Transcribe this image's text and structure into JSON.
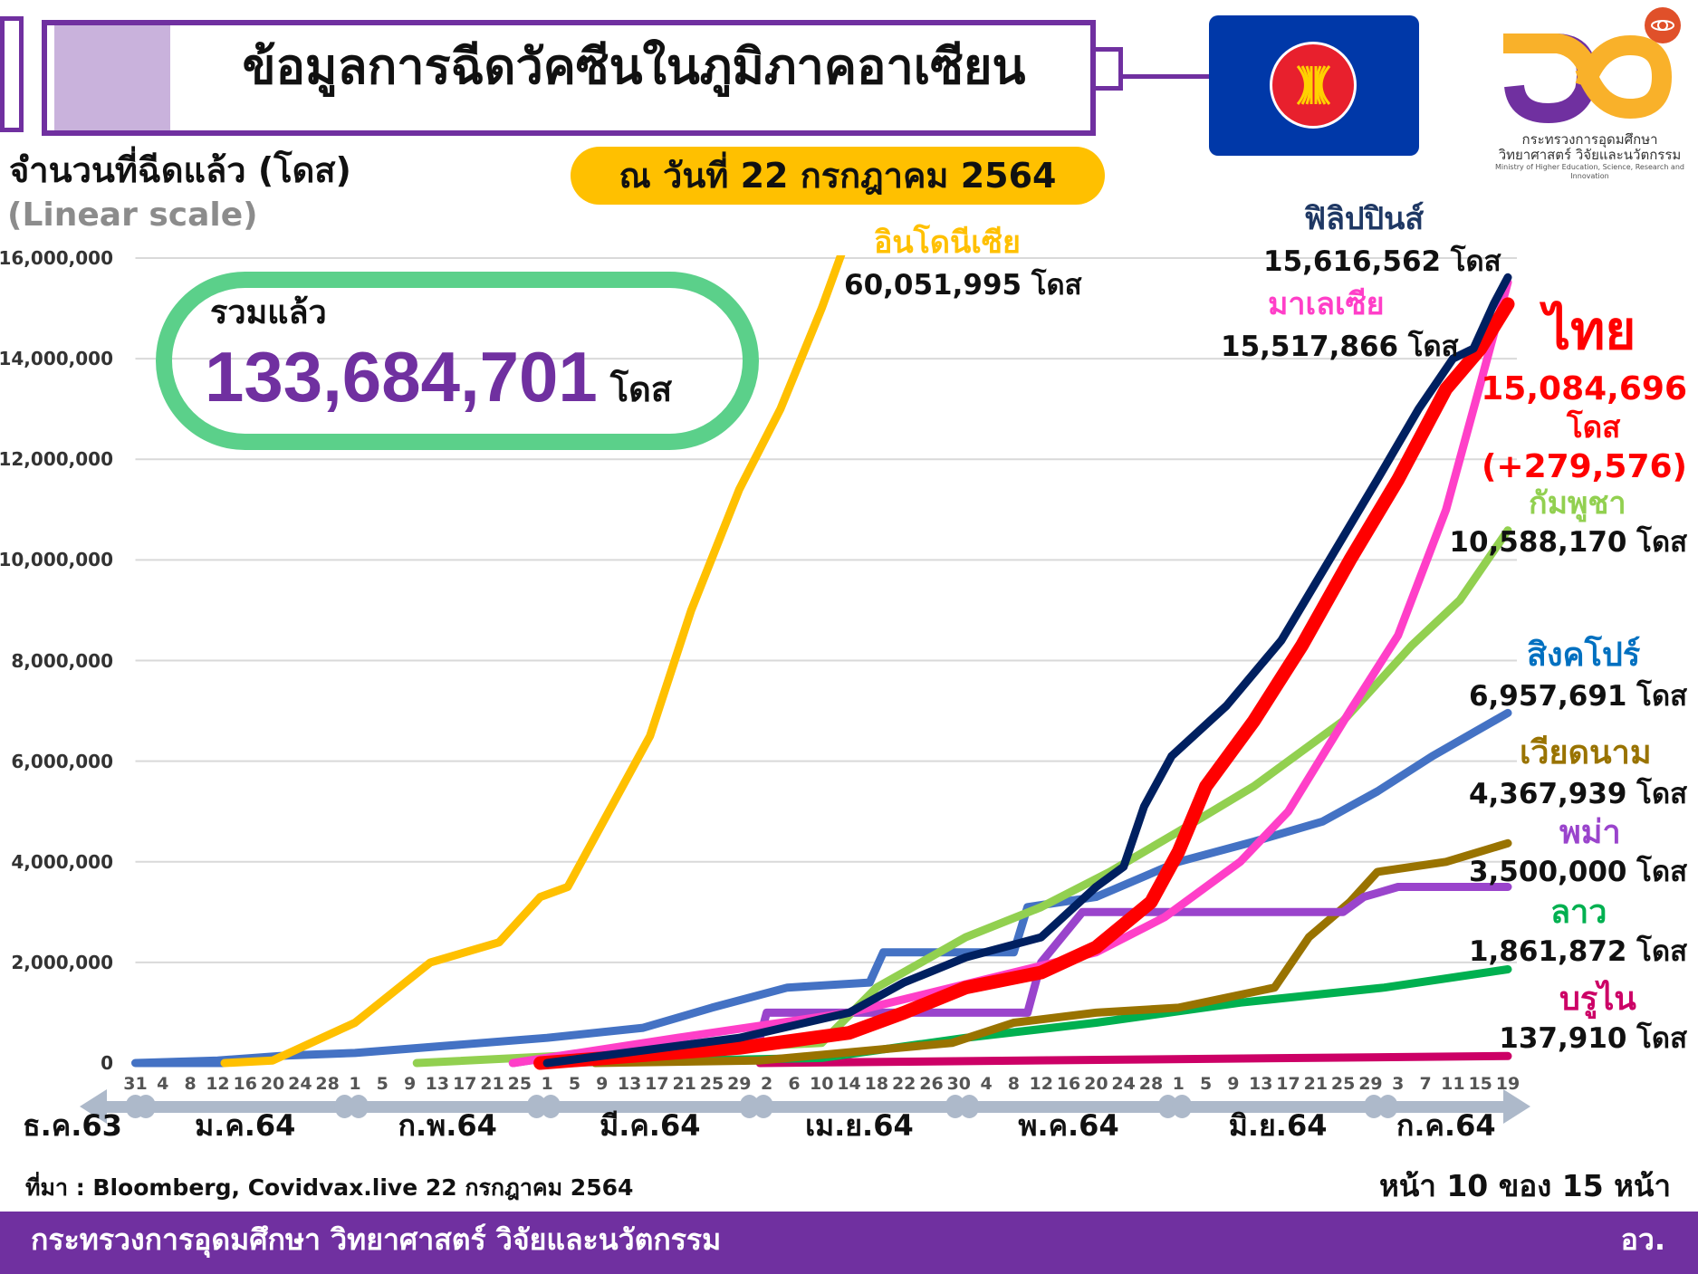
{
  "header": {
    "title": "ข้อมูลการฉีดวัคซีนในภูมิภาคอาเซียน",
    "date": "ณ วันที่ 22 กรกฎาคม 2564",
    "ylabel": "จำนวนที่ฉีดแล้ว (โดส)",
    "scale_note": "(Linear scale)",
    "logo_line1": "กระทรวงการอุดมศึกษา",
    "logo_line2": "วิทยาศาสตร์ วิจัยและนวัตกรรม",
    "logo_en": "Ministry of Higher Education, Science, Research and Innovation"
  },
  "total": {
    "label": "รวมแล้ว",
    "value": "133,684,701",
    "unit": "โดส"
  },
  "footer": {
    "source": "ที่มา : Bloomberg, Covidvax.live 22 กรกฎาคม 2564",
    "page": "หน้า 10 ของ 15 หน้า",
    "ministry": "กระทรวงการอุดมศึกษา วิทยาศาสตร์ วิจัยและนวัตกรรม",
    "abbr": "อว."
  },
  "colors": {
    "accent": "#7030a0",
    "pill": "#ffc000",
    "total_border": "#5bd08a",
    "grid": "#d9d9d9",
    "axis_band": "#adb9ca"
  },
  "chart_data": {
    "type": "line",
    "ylim": [
      0,
      16000000
    ],
    "xlim": [
      "2020-12-31",
      "2021-07-19"
    ],
    "grid": true,
    "y_ticks": [
      "0",
      "2,000,000",
      "4,000,000",
      "6,000,000",
      "8,000,000",
      "10,000,000",
      "12,000,000",
      "14,000,000",
      "16,000,000"
    ],
    "x_tick_labels": [
      "31",
      "4",
      "8",
      "12",
      "16",
      "20",
      "24",
      "28",
      "1",
      "5",
      "9",
      "13",
      "17",
      "21",
      "25",
      "1",
      "5",
      "9",
      "13",
      "17",
      "21",
      "25",
      "29",
      "2",
      "6",
      "10",
      "14",
      "18",
      "22",
      "26",
      "30",
      "4",
      "8",
      "12",
      "16",
      "20",
      "24",
      "28",
      "1",
      "5",
      "9",
      "13",
      "17",
      "21",
      "25",
      "29",
      "3",
      "7",
      "11",
      "15",
      "19"
    ],
    "months": [
      {
        "label": "ธ.ค.63",
        "start": "2020-12-24",
        "end": "2020-12-31"
      },
      {
        "label": "ม.ค.64",
        "start": "2021-01-01",
        "end": "2021-01-31"
      },
      {
        "label": "ก.พ.64",
        "start": "2021-02-01",
        "end": "2021-02-28"
      },
      {
        "label": "มี.ค.64",
        "start": "2021-03-01",
        "end": "2021-03-31"
      },
      {
        "label": "เม.ย.64",
        "start": "2021-04-01",
        "end": "2021-04-30"
      },
      {
        "label": "พ.ค.64",
        "start": "2021-05-01",
        "end": "2021-05-31"
      },
      {
        "label": "มิ.ย.64",
        "start": "2021-06-01",
        "end": "2021-06-30"
      },
      {
        "label": "ก.ค.64",
        "start": "2021-07-01",
        "end": "2021-07-19"
      }
    ],
    "series": [
      {
        "name": "บรูไน",
        "value_label": "137,910 โดส",
        "color": "#cc0066",
        "points": [
          [
            "2021-04-01",
            0
          ],
          [
            "2021-07-19",
            137910
          ]
        ]
      },
      {
        "name": "ลาว",
        "value_label": "1,861,872 โดส",
        "color": "#00b050",
        "points": [
          [
            "2021-03-01",
            0
          ],
          [
            "2021-04-10",
            100000
          ],
          [
            "2021-05-01",
            500000
          ],
          [
            "2021-05-20",
            800000
          ],
          [
            "2021-06-10",
            1200000
          ],
          [
            "2021-07-01",
            1500000
          ],
          [
            "2021-07-19",
            1861872
          ]
        ]
      },
      {
        "name": "เวียดนาม",
        "value_label": "4,367,939 โดส",
        "color": "#997300",
        "points": [
          [
            "2021-03-08",
            0
          ],
          [
            "2021-04-01",
            50000
          ],
          [
            "2021-04-29",
            400000
          ],
          [
            "2021-05-08",
            800000
          ],
          [
            "2021-05-20",
            1000000
          ],
          [
            "2021-06-01",
            1100000
          ],
          [
            "2021-06-15",
            1500000
          ],
          [
            "2021-06-20",
            2500000
          ],
          [
            "2021-06-26",
            3200000
          ],
          [
            "2021-06-30",
            3800000
          ],
          [
            "2021-07-10",
            4000000
          ],
          [
            "2021-07-19",
            4367939
          ]
        ]
      },
      {
        "name": "พม่า",
        "value_label": "3,500,000 โดส",
        "color": "#9a44cc",
        "points": [
          [
            "2021-02-24",
            0
          ],
          [
            "2021-03-01",
            100000
          ],
          [
            "2021-04-01",
            500000
          ],
          [
            "2021-04-02",
            1000000
          ],
          [
            "2021-05-10",
            1000000
          ],
          [
            "2021-05-12",
            2000000
          ],
          [
            "2021-05-18",
            3000000
          ],
          [
            "2021-06-25",
            3000000
          ],
          [
            "2021-06-28",
            3300000
          ],
          [
            "2021-07-03",
            3500000
          ],
          [
            "2021-07-19",
            3500000
          ]
        ]
      },
      {
        "name": "สิงคโปร์",
        "value_label": "6,957,691 โดส",
        "color": "#4472c4",
        "label_color": "#0070c0",
        "points": [
          [
            "2020-12-31",
            0
          ],
          [
            "2021-01-12",
            50000
          ],
          [
            "2021-01-22",
            150000
          ],
          [
            "2021-02-01",
            200000
          ],
          [
            "2021-03-01",
            500000
          ],
          [
            "2021-03-15",
            700000
          ],
          [
            "2021-03-25",
            1100000
          ],
          [
            "2021-04-05",
            1500000
          ],
          [
            "2021-04-17",
            1600000
          ],
          [
            "2021-04-19",
            2200000
          ],
          [
            "2021-05-08",
            2200000
          ],
          [
            "2021-05-10",
            3100000
          ],
          [
            "2021-05-20",
            3300000
          ],
          [
            "2021-06-01",
            4000000
          ],
          [
            "2021-06-12",
            4400000
          ],
          [
            "2021-06-22",
            4800000
          ],
          [
            "2021-06-30",
            5400000
          ],
          [
            "2021-07-08",
            6100000
          ],
          [
            "2021-07-19",
            6957691
          ]
        ]
      },
      {
        "name": "กัมพูชา",
        "value_label": "10,588,170 โดส",
        "color": "#92d050",
        "points": [
          [
            "2021-02-10",
            0
          ],
          [
            "2021-04-10",
            400000
          ],
          [
            "2021-04-18",
            1500000
          ],
          [
            "2021-05-01",
            2500000
          ],
          [
            "2021-05-12",
            3100000
          ],
          [
            "2021-05-22",
            3800000
          ],
          [
            "2021-06-01",
            4600000
          ],
          [
            "2021-06-12",
            5500000
          ],
          [
            "2021-06-25",
            6800000
          ],
          [
            "2021-07-05",
            8300000
          ],
          [
            "2021-07-12",
            9200000
          ],
          [
            "2021-07-19",
            10588170
          ]
        ]
      },
      {
        "name": "มาเลเซีย",
        "value_label": "15,517,866 โดส",
        "color": "#ff3fc8",
        "points": [
          [
            "2021-02-24",
            0
          ],
          [
            "2021-03-20",
            500000
          ],
          [
            "2021-04-14",
            1000000
          ],
          [
            "2021-05-08",
            1800000
          ],
          [
            "2021-05-20",
            2200000
          ],
          [
            "2021-05-30",
            2900000
          ],
          [
            "2021-06-10",
            4000000
          ],
          [
            "2021-06-17",
            5000000
          ],
          [
            "2021-06-26",
            7000000
          ],
          [
            "2021-07-03",
            8500000
          ],
          [
            "2021-07-10",
            11000000
          ],
          [
            "2021-07-15",
            13500000
          ],
          [
            "2021-07-19",
            15517866
          ]
        ]
      },
      {
        "name": "ไทย",
        "value_label": "15,084,696",
        "unit": "โดส",
        "delta": "(+279,576)",
        "color": "#ff0000",
        "points": [
          [
            "2021-02-28",
            0
          ],
          [
            "2021-03-29",
            300000
          ],
          [
            "2021-04-14",
            600000
          ],
          [
            "2021-04-22",
            1000000
          ],
          [
            "2021-05-01",
            1500000
          ],
          [
            "2021-05-12",
            1800000
          ],
          [
            "2021-05-20",
            2300000
          ],
          [
            "2021-05-28",
            3200000
          ],
          [
            "2021-06-01",
            4200000
          ],
          [
            "2021-06-05",
            5500000
          ],
          [
            "2021-06-12",
            6800000
          ],
          [
            "2021-06-19",
            8300000
          ],
          [
            "2021-06-26",
            10000000
          ],
          [
            "2021-07-03",
            11600000
          ],
          [
            "2021-07-10",
            13400000
          ],
          [
            "2021-07-15",
            14200000
          ],
          [
            "2021-07-19",
            15084696
          ]
        ]
      },
      {
        "name": "ฟิลิปปินส์",
        "value_label": "15,616,562 โดส",
        "color": "#002060",
        "points": [
          [
            "2021-03-01",
            0
          ],
          [
            "2021-03-29",
            500000
          ],
          [
            "2021-04-14",
            1000000
          ],
          [
            "2021-04-22",
            1600000
          ],
          [
            "2021-05-01",
            2100000
          ],
          [
            "2021-05-12",
            2500000
          ],
          [
            "2021-05-20",
            3500000
          ],
          [
            "2021-05-24",
            3900000
          ],
          [
            "2021-05-27",
            5100000
          ],
          [
            "2021-05-31",
            6100000
          ],
          [
            "2021-06-08",
            7100000
          ],
          [
            "2021-06-16",
            8400000
          ],
          [
            "2021-06-23",
            10000000
          ],
          [
            "2021-06-30",
            11600000
          ],
          [
            "2021-07-06",
            13000000
          ],
          [
            "2021-07-11",
            14000000
          ],
          [
            "2021-07-14",
            14200000
          ],
          [
            "2021-07-17",
            15100000
          ],
          [
            "2021-07-19",
            15616562
          ]
        ]
      },
      {
        "name": "อินโดนีเซีย",
        "value_label": "60,051,995 โดส",
        "color": "#ffc000",
        "points": [
          [
            "2021-01-13",
            0
          ],
          [
            "2021-01-20",
            50000
          ],
          [
            "2021-01-24",
            300000
          ],
          [
            "2021-02-01",
            800000
          ],
          [
            "2021-02-12",
            2000000
          ],
          [
            "2021-02-22",
            2400000
          ],
          [
            "2021-02-28",
            3300000
          ],
          [
            "2021-03-04",
            3500000
          ],
          [
            "2021-03-10",
            5000000
          ],
          [
            "2021-03-16",
            6500000
          ],
          [
            "2021-03-22",
            9000000
          ],
          [
            "2021-03-29",
            11400000
          ],
          [
            "2021-04-04",
            13000000
          ],
          [
            "2021-04-10",
            15000000
          ],
          [
            "2021-04-14",
            16500000
          ]
        ]
      }
    ]
  }
}
